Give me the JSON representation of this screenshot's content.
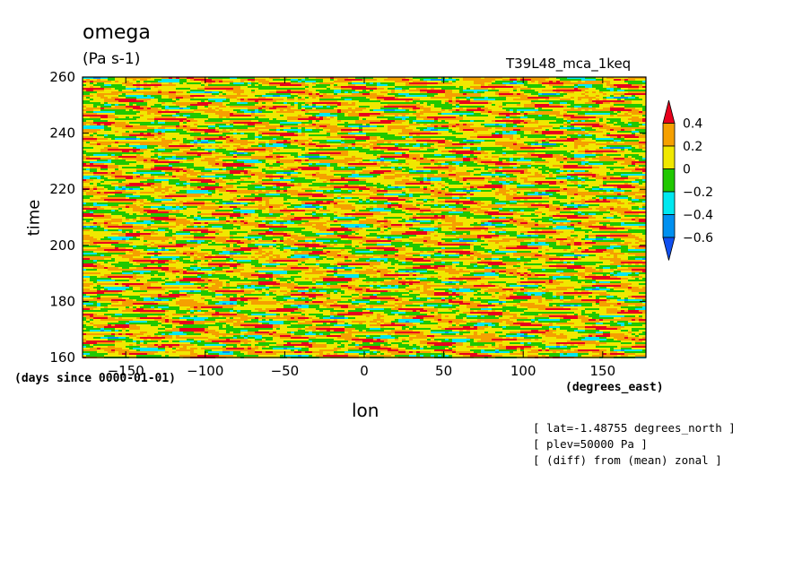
{
  "chart_data": {
    "type": "heatmap",
    "title": "omega",
    "units": "(Pa s-1)",
    "run_label": "T39L48_mca_1keq",
    "xlabel": "lon",
    "ylabel": "time",
    "x_units": "(degrees_east)",
    "y_units": "(days since 0000-01-01)",
    "xlim": [
      -177.1875,
      177.1875
    ],
    "ylim": [
      160,
      260
    ],
    "x_ticks": [
      -150,
      -100,
      -50,
      0,
      50,
      100,
      150
    ],
    "y_ticks": [
      160,
      180,
      200,
      220,
      240,
      260
    ],
    "x_tick_labels": [
      "−150",
      "−100",
      "−50",
      "0",
      "50",
      "100",
      "150"
    ],
    "y_tick_labels": [
      "160",
      "180",
      "200",
      "220",
      "240",
      "260"
    ],
    "colorbar": {
      "levels": [
        0.4,
        0.2,
        0,
        -0.2,
        -0.4,
        -0.6
      ],
      "level_labels": [
        "0.4",
        "0.2",
        "0",
        "−0.2",
        "−0.4",
        "−0.6"
      ],
      "colors": [
        "#e8001c",
        "#f5a000",
        "#f0e800",
        "#20c800",
        "#00e8f0",
        "#0090f0",
        "#1050f0"
      ]
    },
    "notes": [
      "[ lat=-1.48755 degrees_north ]",
      "[ plev=50000 Pa ]",
      "[ (diff) from (mean) zonal ]"
    ],
    "grid": false
  }
}
